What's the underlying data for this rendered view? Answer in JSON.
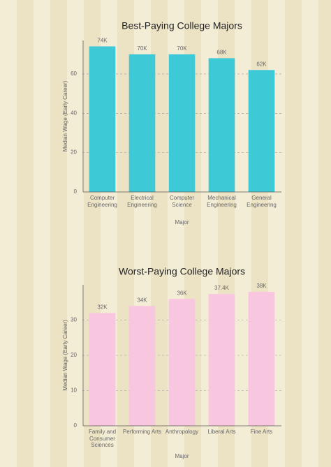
{
  "chart_data": [
    {
      "type": "bar",
      "title": "Best-Paying College Majors",
      "x_label": "Major",
      "y_label": "Median Wage (Early Career)",
      "categories": [
        "Computer Engineering",
        "Electrical Engineering",
        "Computer Science",
        "Mechanical Engineering",
        "General Engineering"
      ],
      "values": [
        74,
        70,
        70,
        68,
        62
      ],
      "value_labels": [
        "74K",
        "70K",
        "70K",
        "68K",
        "62K"
      ],
      "color": "#3ec9d6",
      "ylim": [
        0,
        77
      ],
      "yticks": [
        0,
        20,
        40,
        60
      ],
      "grid": true
    },
    {
      "type": "bar",
      "title": "Worst-Paying College Majors",
      "x_label": "Major",
      "y_label": "Median Wage (Early Career)",
      "categories": [
        "Family and Consumer Sciences",
        "Performing Arts",
        "Anthropology",
        "Liberal Arts",
        "Fine Arts"
      ],
      "values": [
        32,
        34,
        36,
        37.4,
        38
      ],
      "value_labels": [
        "32K",
        "34K",
        "36K",
        "37.4K",
        "38K"
      ],
      "color": "#f9c6df",
      "ylim": [
        0,
        40
      ],
      "yticks": [
        0,
        10,
        20,
        30
      ],
      "grid": true
    }
  ]
}
